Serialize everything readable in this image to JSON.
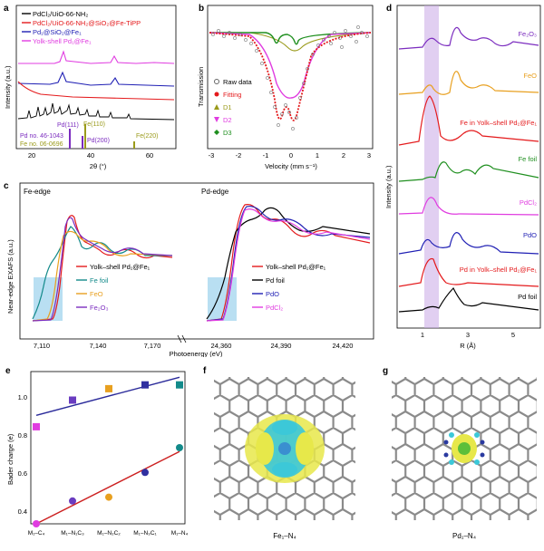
{
  "panels": {
    "a": {
      "label": "a",
      "legend": [
        "PdCl₂/UiO-66-NH₂",
        "PdCl₂/UiO-66-NH₂@SiO₂@Fe-TiPP",
        "Pd₁@SiO₂@Fe₁",
        "Yolk-shell Pd₁@Fe₁"
      ],
      "ylabel": "Intensity (a.u.)",
      "xlabel": "2θ (°)",
      "xticks": [
        "20",
        "40",
        "60"
      ],
      "ref_labels": [
        "Pd no. 46-1043",
        "Fe no. 06-0696"
      ],
      "peak_labels": [
        "Pd(111)",
        "Fe(110)",
        "Pd(200)",
        "Fe(220)"
      ],
      "colors": [
        "#000000",
        "#e41a1c",
        "#1f1fb4",
        "#e03ce0",
        "#7b2cbf",
        "#9a9a1a"
      ]
    },
    "b": {
      "label": "b",
      "ylabel": "Transmission",
      "xlabel": "Velocity (mm s⁻¹)",
      "xticks": [
        "-3",
        "-2",
        "-1",
        "0",
        "1",
        "2",
        "3"
      ],
      "legend": [
        "Raw data",
        "Fitting",
        "D1",
        "D2",
        "D3"
      ],
      "colors": [
        "#666666",
        "#e41a1c",
        "#9a9a1a",
        "#e03ce0",
        "#1f8f1f"
      ]
    },
    "c": {
      "label": "c",
      "ylabel": "Near-edge EXAFS (a.u.)",
      "xlabel": "Photoenergy (eV)",
      "fe_title": "Fe-edge",
      "pd_title": "Pd-edge",
      "fe_ticks": [
        "7,110",
        "7,140",
        "7,170"
      ],
      "pd_ticks": [
        "24,360",
        "24,390",
        "24,420"
      ],
      "fe_legend": [
        "Yolk–shell Pd₁@Fe₁",
        "Fe foil",
        "FeO",
        "Fe₂O₃"
      ],
      "fe_colors": [
        "#e41a1c",
        "#138a8a",
        "#e8a020",
        "#7b2cbf"
      ],
      "pd_legend": [
        "Yolk–shell Pd₁@Fe₁",
        "Pd foil",
        "PdO",
        "PdCl₂"
      ],
      "pd_colors": [
        "#e41a1c",
        "#000000",
        "#1f1fb4",
        "#e03ce0"
      ]
    },
    "d": {
      "label": "d",
      "ylabel": "Intensity (a.u.)",
      "xlabel": "R (Å)",
      "xticks": [
        "1",
        "3",
        "5"
      ],
      "traces": [
        {
          "name": "Fe₂O₃",
          "color": "#7b2cbf"
        },
        {
          "name": "FeO",
          "color": "#e8a020"
        },
        {
          "name": "Fe in Yolk–shell Pd₁@Fe₁",
          "color": "#e41a1c"
        },
        {
          "name": "Fe foil",
          "color": "#1f8f1f"
        },
        {
          "name": "PdCl₂",
          "color": "#e03ce0"
        },
        {
          "name": "PdO",
          "color": "#1f1fb4"
        },
        {
          "name": "Pd in Yolk–shell Pd₁@Fe₁",
          "color": "#e41a1c"
        },
        {
          "name": "Pd foil",
          "color": "#000000"
        }
      ]
    },
    "e": {
      "label": "e",
      "ylabel": "Bader charge (e)",
      "yticks": [
        "0.4",
        "0.6",
        "0.8",
        "1.0"
      ],
      "categories": [
        "M₁–C₄",
        "M₁–N₁C₃",
        "M₁–N₂C₂",
        "M₁–N₃C₁",
        "M₁–N₄"
      ]
    },
    "f": {
      "label": "f",
      "caption": "Fe₁–N₄"
    },
    "g": {
      "label": "g",
      "caption": "Pd₁–N₄"
    }
  },
  "chart_data": [
    {
      "type": "scatter",
      "panel": "e",
      "ylabel": "Bader charge (e)",
      "categories": [
        "M1–C4",
        "M1–N1C3",
        "M1–N2C2",
        "M1–N3C1",
        "M1–N4"
      ],
      "ylim": [
        0.35,
        1.15
      ],
      "series": [
        {
          "values": [
            0.86,
            1.0,
            1.06,
            1.08,
            1.08
          ],
          "color": "#b04cc0",
          "marker": "square"
        },
        {
          "values": [
            0.35,
            0.47,
            0.49,
            0.62,
            0.75
          ],
          "color": "#3030a0",
          "marker": "circle"
        }
      ],
      "point_colors": [
        [
          "#e03ce0",
          "#6a3cc0",
          "#e8a020",
          "#3030a0",
          "#138a8a"
        ],
        [
          "#e03ce0",
          "#6a3cc0",
          "#e8a020",
          "#3030a0",
          "#138a8a"
        ]
      ],
      "fit_lines": [
        {
          "from": 0.92,
          "to": 1.12,
          "color": "#2a2a9a"
        },
        {
          "from": 0.35,
          "to": 0.73,
          "color": "#cc1f1f"
        }
      ]
    }
  ]
}
